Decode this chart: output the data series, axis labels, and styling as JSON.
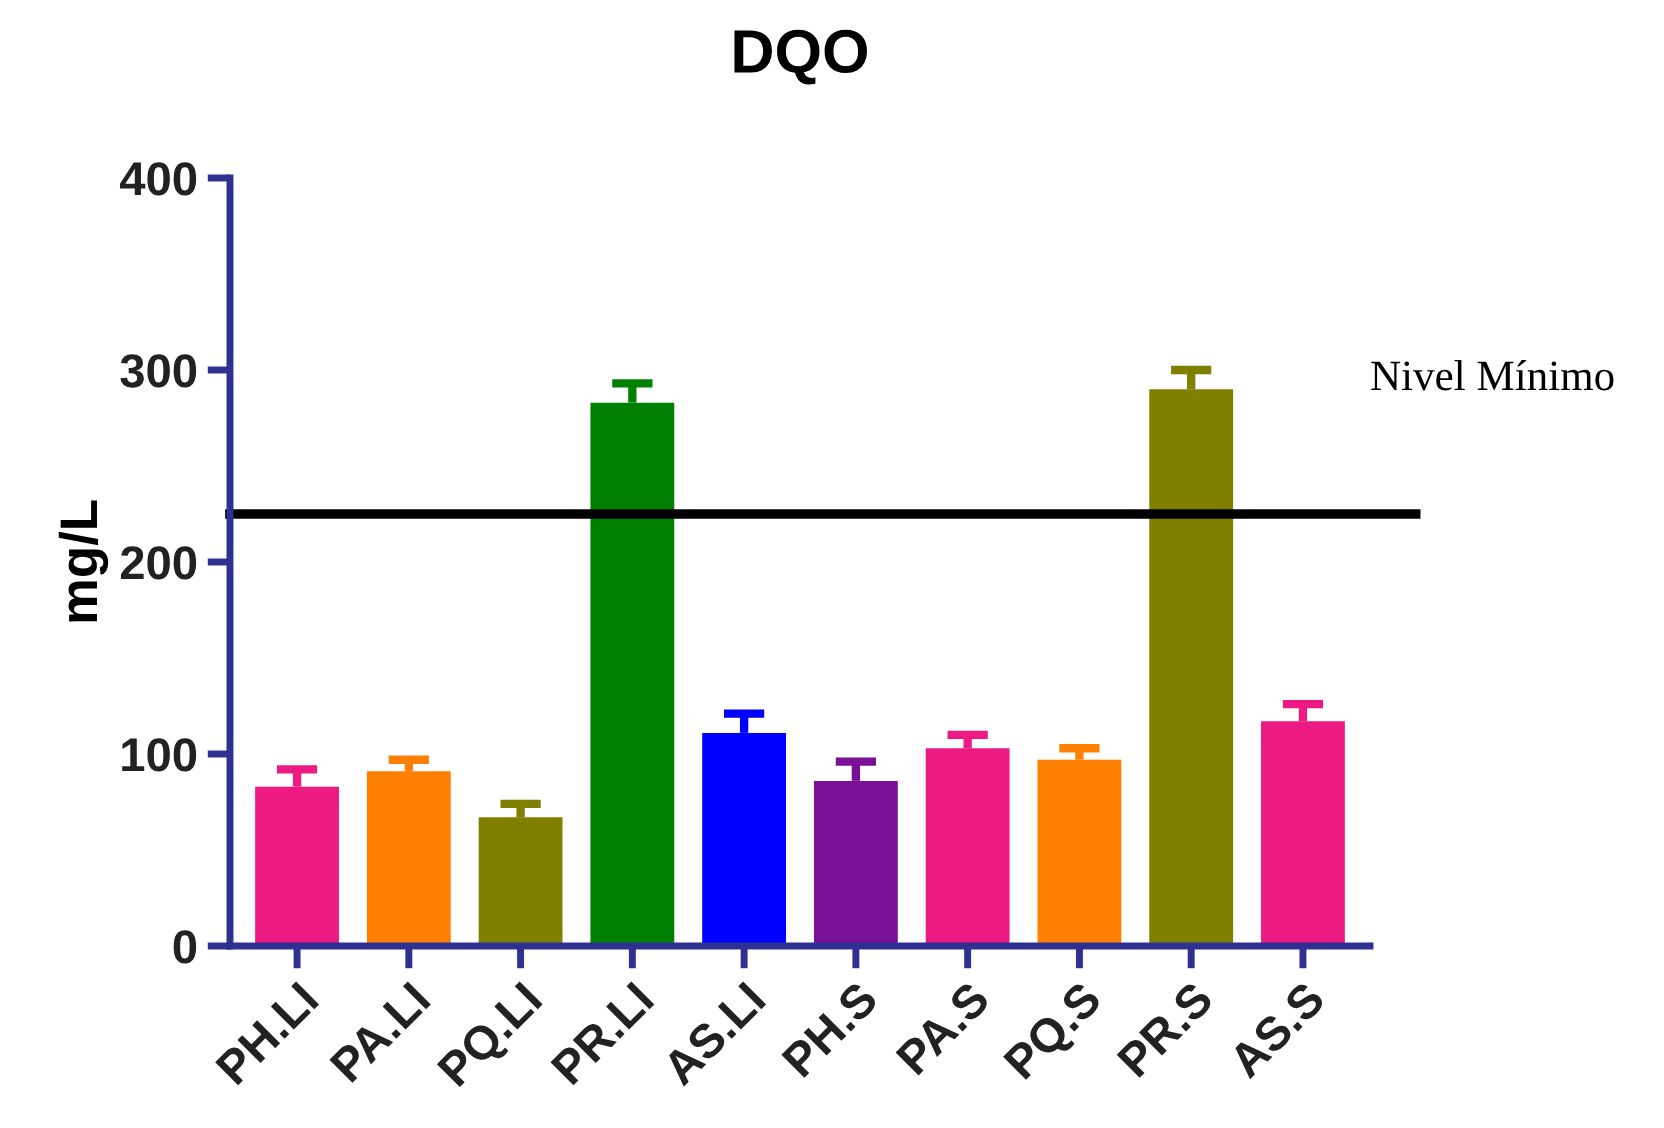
{
  "chart_data": {
    "type": "bar",
    "title": "DQO",
    "ylabel": "mg/L",
    "categories": [
      "PH.LI",
      "PA.LI",
      "PQ.LI",
      "PR.LI",
      "AS.LI",
      "PH.S",
      "PA.S",
      "PQ.S",
      "PR.S",
      "AS.S"
    ],
    "values": [
      83,
      91,
      67,
      283,
      111,
      86,
      103,
      97,
      290,
      117
    ],
    "colors": [
      "#ee1a84",
      "#ff8000",
      "#808000",
      "#008000",
      "#0000ff",
      "#7a1096",
      "#ee1a84",
      "#ff8000",
      "#808000",
      "#ee1a84"
    ],
    "errors": [
      [
        83,
        92
      ],
      [
        91,
        97
      ],
      [
        67,
        74
      ],
      [
        283,
        293
      ],
      [
        111,
        121
      ],
      [
        86,
        96
      ],
      [
        103,
        110
      ],
      [
        97,
        103
      ],
      [
        290,
        300
      ],
      [
        117,
        126
      ]
    ],
    "ylim": [
      0,
      400
    ],
    "yticks": [
      0,
      100,
      200,
      300,
      400
    ],
    "grid": false,
    "legend": false,
    "ref_lines": [
      {
        "axis": "y",
        "value": 225,
        "label": "Nivel Mínimo",
        "color": "#000000"
      }
    ]
  }
}
